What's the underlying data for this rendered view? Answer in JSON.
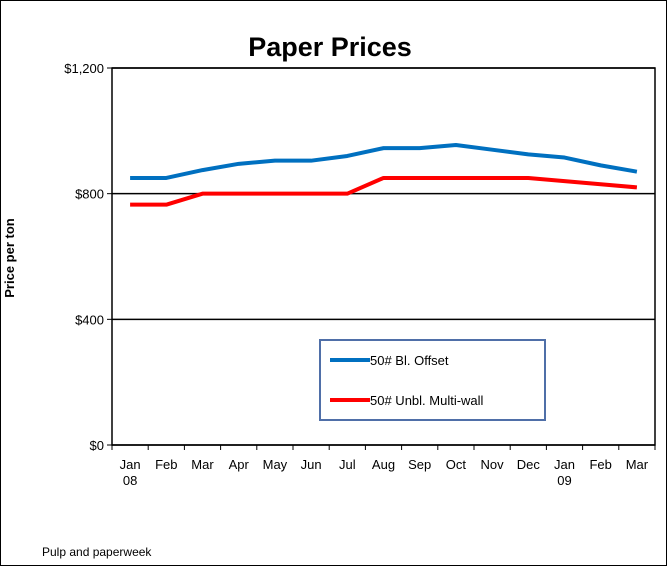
{
  "chart_data": {
    "type": "line",
    "title": "Paper Prices",
    "y_label": "Price per ton",
    "source": "Pulp and paperweek",
    "categories": [
      "Jan 08",
      "Feb",
      "Mar",
      "Apr",
      "May",
      "Jun",
      "Jul",
      "Aug",
      "Sep",
      "Oct",
      "Nov",
      "Dec",
      "Jan 09",
      "Feb",
      "Mar"
    ],
    "series": [
      {
        "name": "50# Bl. Offset",
        "color": "#0070c0",
        "values": [
          850,
          850,
          875,
          895,
          905,
          905,
          920,
          945,
          945,
          955,
          940,
          925,
          915,
          890,
          870
        ]
      },
      {
        "name": "50# Unbl. Multi-wall",
        "color": "#ff0000",
        "values": [
          765,
          765,
          800,
          800,
          800,
          800,
          800,
          850,
          850,
          850,
          850,
          850,
          840,
          830,
          820
        ]
      }
    ],
    "ylim": [
      0,
      1200
    ],
    "yticks": [
      {
        "value": 0,
        "label": "$0"
      },
      {
        "value": 400,
        "label": "$400"
      },
      {
        "value": 800,
        "label": "$800"
      },
      {
        "value": 1200,
        "label": "$1,200"
      }
    ],
    "grid": true
  }
}
